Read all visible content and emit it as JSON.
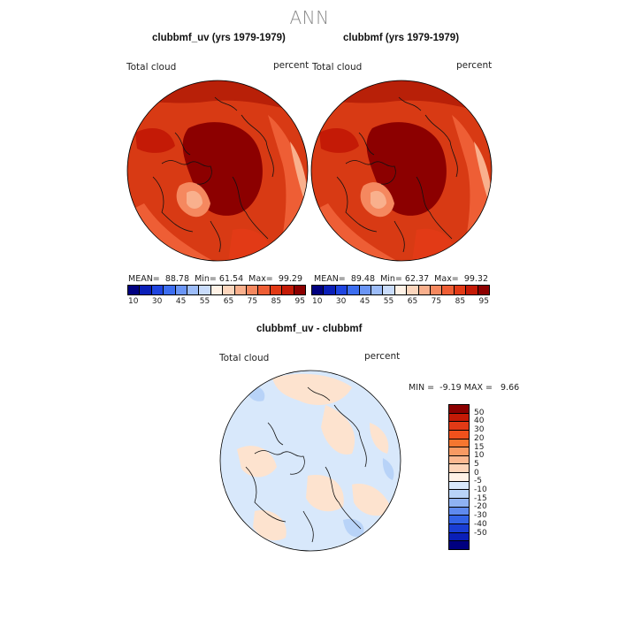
{
  "title": "ANN",
  "panels": [
    {
      "title": "clubbmf_uv (yrs 1979-1979)",
      "variable": "Total cloud",
      "units": "percent",
      "stats": {
        "mean_label": "MEAN=",
        "mean": "88.78",
        "min_label": "Min=",
        "min": "61.54",
        "max_label": "Max=",
        "max": "99.29"
      }
    },
    {
      "title": "clubbmf (yrs 1979-1979)",
      "variable": "Total cloud",
      "units": "percent",
      "stats": {
        "mean_label": "MEAN=",
        "mean": "89.48",
        "min_label": "Min=",
        "min": "62.37",
        "max_label": "Max=",
        "max": "99.32"
      }
    }
  ],
  "top_colorbar": {
    "colors": [
      "#000080",
      "#0a1fb8",
      "#1f45e0",
      "#3d6ef0",
      "#6a95f5",
      "#9cbcf8",
      "#c9dcfb",
      "#fff2e6",
      "#fcd6bd",
      "#f9b08d",
      "#f5885f",
      "#ee5e35",
      "#e23a16",
      "#c41a06",
      "#8c0000"
    ],
    "tick_labels": [
      "10",
      "30",
      "45",
      "55",
      "65",
      "75",
      "85",
      "95"
    ]
  },
  "difference_panel": {
    "title": "clubbmf_uv - clubbmf",
    "variable": "Total cloud",
    "units": "percent",
    "stats": {
      "min_label": "MIN =",
      "min": "-9.19",
      "max_label": "MAX =",
      "max": "9.66"
    }
  },
  "diff_colorbar": {
    "colors": [
      "#8c0000",
      "#c41a06",
      "#e23a16",
      "#f0511c",
      "#f5762f",
      "#f89a63",
      "#fbb890",
      "#fdd4b8",
      "#fff2e6",
      "#d8e8fb",
      "#b8d3f8",
      "#8fb2f3",
      "#5f8aee",
      "#3363e6",
      "#1a3ed4",
      "#0a1fb8",
      "#000080"
    ],
    "tick_labels": [
      "50",
      "40",
      "30",
      "20",
      "15",
      "10",
      "5",
      "0",
      "-5",
      "-10",
      "-15",
      "-20",
      "-30",
      "-40",
      "-50"
    ]
  },
  "icons": {
    "map1": "polar-stereographic-map",
    "map2": "polar-stereographic-map",
    "map3": "polar-stereographic-difference-map"
  }
}
